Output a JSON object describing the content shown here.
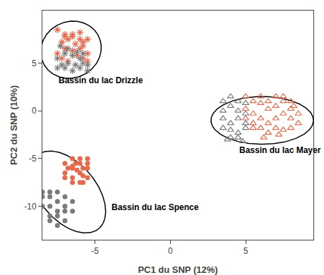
{
  "chart_data": {
    "type": "scatter",
    "xlabel": "PC1 du SNP (12%)",
    "ylabel": "PC2 du SNP (10%)",
    "xlim": [
      -8.5,
      9.5
    ],
    "ylim": [
      -13.5,
      10.5
    ],
    "xticks": [
      -5,
      0,
      5
    ],
    "yticks": [
      -10,
      -5,
      0,
      5
    ],
    "grid": false,
    "series": [
      {
        "color": "#E8694A",
        "marker": "asterisk",
        "x": [
          -7.5,
          -7.0,
          -6.5,
          -6.0,
          -5.5,
          -7.2,
          -6.8,
          -6.3,
          -5.8,
          -7.0,
          -6.5,
          -6.0,
          -5.5,
          -7.5,
          -6.2,
          -5.8,
          -6.8,
          -7.2,
          -5.5,
          -6.0,
          -5.8,
          -7.0,
          -6.5
        ],
        "values": [
          8.5,
          8.0,
          7.8,
          8.2,
          7.5,
          7.2,
          7.5,
          7.0,
          6.8,
          6.5,
          6.3,
          6.5,
          6.0,
          6.0,
          5.8,
          5.5,
          5.2,
          5.5,
          5.2,
          7.5,
          7.2,
          7.8,
          8.0
        ]
      },
      {
        "color": "#7A7A7A",
        "marker": "asterisk",
        "x": [
          -7.0,
          -6.5,
          -6.0,
          -7.5,
          -6.8,
          -6.3,
          -5.8,
          -7.0,
          -6.5,
          -6.0,
          -5.5,
          -7.2,
          -6.2,
          -5.8,
          -7.5,
          -5.5,
          -6.8,
          -7.3
        ],
        "values": [
          6.0,
          5.8,
          5.5,
          5.5,
          5.0,
          4.8,
          5.0,
          4.5,
          4.2,
          4.5,
          4.2,
          4.8,
          6.2,
          6.0,
          4.5,
          4.8,
          6.5,
          6.8
        ]
      },
      {
        "color": "#E8694A",
        "marker": "open-triangle",
        "x": [
          5.0,
          5.5,
          6.0,
          6.5,
          7.0,
          7.5,
          8.0,
          8.5,
          6.0,
          6.5,
          7.0,
          7.5,
          8.0,
          5.5,
          5.0,
          6.0,
          7.0,
          8.0,
          6.5,
          7.5,
          5.5,
          6.0,
          6.5,
          7.0,
          7.5,
          8.0,
          8.5,
          5.0,
          5.5,
          8.2,
          7.2,
          6.2
        ],
        "values": [
          1.5,
          1.0,
          0.8,
          0.2,
          0.5,
          1.0,
          0.2,
          -0.3,
          -0.8,
          -1.3,
          -0.8,
          -0.3,
          -0.8,
          -0.3,
          0.2,
          1.5,
          1.5,
          1.0,
          1.0,
          1.5,
          -1.3,
          -1.8,
          -2.3,
          -1.8,
          -2.0,
          -1.8,
          -1.3,
          -0.8,
          -1.8,
          0.5,
          -2.5,
          -2.8
        ]
      },
      {
        "color": "#7A7A7A",
        "marker": "open-triangle",
        "x": [
          4.0,
          4.5,
          5.0,
          4.5,
          4.0,
          4.5,
          5.0,
          4.0,
          4.5,
          5.0,
          3.5,
          3.5,
          4.0,
          4.5,
          5.0,
          3.5,
          4.0,
          3.5,
          4.8,
          3.8
        ],
        "values": [
          0.5,
          0.0,
          -0.3,
          -0.8,
          -1.3,
          1.0,
          0.8,
          -2.0,
          -2.3,
          -1.8,
          0.0,
          -0.8,
          -2.8,
          -2.8,
          -1.3,
          -1.8,
          1.5,
          1.0,
          -3.2,
          -3.0
        ]
      },
      {
        "color": "#E8694A",
        "marker": "circle",
        "x": [
          -6.5,
          -6.0,
          -5.5,
          -6.5,
          -6.0,
          -5.5,
          -6.5,
          -6.0,
          -5.5,
          -7.0,
          -7.0,
          -7.0,
          -5.5,
          -6.0,
          -5.8,
          -6.5,
          -6.2,
          -5.8,
          -6.8,
          -6.3,
          -5.8,
          -6.5
        ],
        "values": [
          -5.0,
          -5.5,
          -5.0,
          -6.0,
          -6.5,
          -6.0,
          -7.0,
          -7.5,
          -7.0,
          -5.5,
          -6.5,
          -7.0,
          -5.5,
          -5.0,
          -7.5,
          -7.5,
          -6.2,
          -6.8,
          -6.0,
          -5.5,
          -6.0,
          -5.8
        ]
      },
      {
        "color": "#7A7A7A",
        "marker": "circle",
        "x": [
          -7.5,
          -8.0,
          -7.5,
          -8.0,
          -7.5,
          -8.0,
          -7.0,
          -7.0,
          -8.5,
          -8.5,
          -8.0,
          -7.5,
          -7.0,
          -6.5,
          -6.5,
          -8.5,
          -7.0,
          -7.5,
          -8.0
        ],
        "values": [
          -8.5,
          -9.0,
          -9.5,
          -10.0,
          -10.5,
          -8.5,
          -9.0,
          -10.0,
          -9.0,
          -10.0,
          -11.0,
          -11.0,
          -10.5,
          -9.5,
          -10.5,
          -8.5,
          -11.5,
          -12.0,
          -11.5
        ]
      }
    ],
    "ellipses": [
      {
        "cx": -6.6,
        "cy": 6.4,
        "width": 4.0,
        "height": 6.0,
        "angle": -5,
        "color": "black"
      },
      {
        "cx": 6.1,
        "cy": -1.0,
        "width": 6.8,
        "height": 5.0,
        "angle": 0,
        "color": "black"
      },
      {
        "cx": -6.8,
        "cy": -8.5,
        "width": 4.2,
        "height": 9.0,
        "angle": 20,
        "color": "black"
      }
    ],
    "annotations": [
      {
        "text": "Bassin du lac Drizzle",
        "x": -7.5,
        "y": 2.5
      },
      {
        "text": "Bassin du lac Mayer",
        "x": 4.5,
        "y": -4.8
      },
      {
        "text": "Bassin du lac Spence",
        "x": -4.0,
        "y": -10.8
      }
    ]
  }
}
